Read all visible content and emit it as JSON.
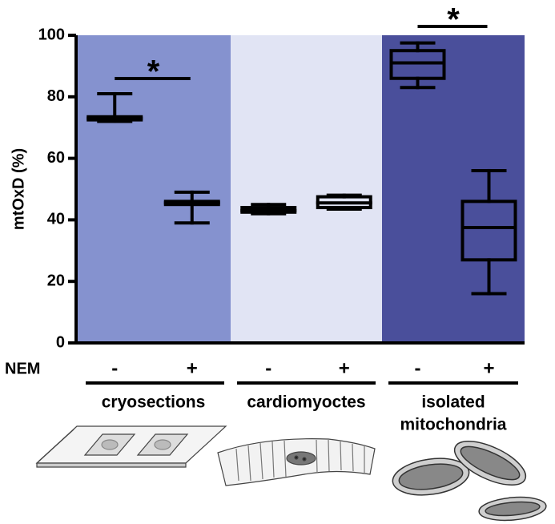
{
  "chart_data": {
    "type": "box",
    "ylabel": "mtOxD (%)",
    "ylim": [
      0,
      100
    ],
    "yticks": [
      0,
      20,
      40,
      60,
      80,
      100
    ],
    "treatment": "NEM",
    "categories": [
      "-",
      "+",
      "-",
      "+",
      "-",
      "+"
    ],
    "groups": [
      {
        "name": [
          "cryosections"
        ],
        "color": "#8592cf"
      },
      {
        "name": [
          "cardiomyoctes"
        ],
        "color": "#e1e4f4"
      },
      {
        "name": [
          "isolated",
          "mitochondria"
        ],
        "color": "#4a4f9b"
      }
    ],
    "boxes": [
      {
        "min": 72,
        "q1": 72.5,
        "median": 73,
        "q3": 73.5,
        "max": 81
      },
      {
        "min": 39,
        "q1": 45,
        "median": 45.5,
        "q3": 46,
        "max": 49
      },
      {
        "min": 42,
        "q1": 42.5,
        "median": 43,
        "q3": 44,
        "max": 45
      },
      {
        "min": 43.5,
        "q1": 44,
        "median": 45.5,
        "q3": 47.5,
        "max": 48
      },
      {
        "min": 83,
        "q1": 86,
        "median": 91,
        "q3": 95,
        "max": 97.5
      },
      {
        "min": 16,
        "q1": 27,
        "median": 37.5,
        "q3": 46,
        "max": 56
      }
    ],
    "annotations": [
      "*",
      "*"
    ]
  }
}
